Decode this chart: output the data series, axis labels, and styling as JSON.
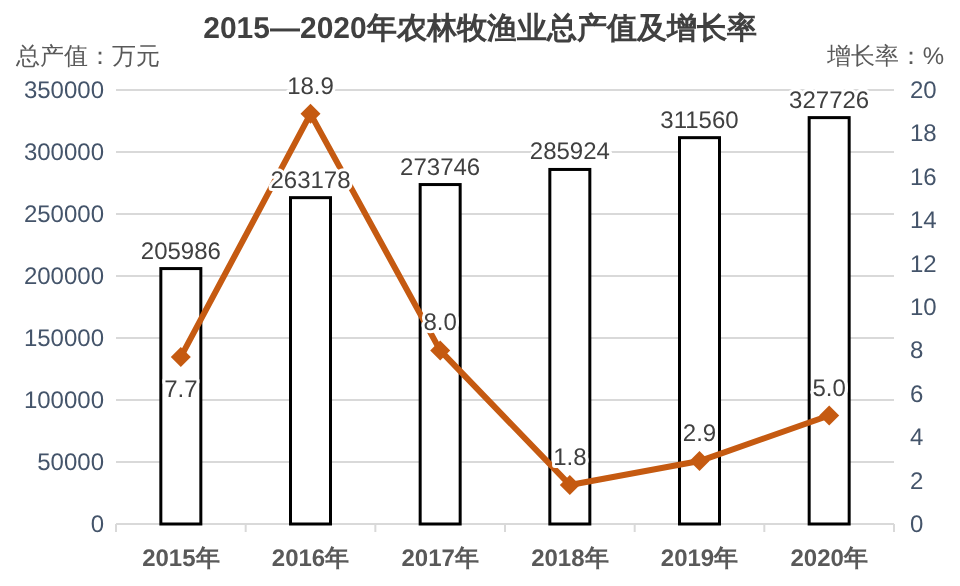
{
  "chart_data": {
    "type": "bar",
    "title": "2015—2020年农林牧渔业总产值及增长率",
    "ylabel": "总产值：万元",
    "y2label": "增长率：%",
    "categories": [
      "2015年",
      "2016年",
      "2017年",
      "2018年",
      "2019年",
      "2020年"
    ],
    "series": [
      {
        "color": "#ffffff",
        "values": [
          205986,
          263178,
          273746,
          285924,
          311560,
          327726
        ]
      },
      {
        "type": "line",
        "axis": "y2",
        "color": "#c55a11",
        "marker": "diamond",
        "values": [
          7.7,
          18.9,
          8.0,
          1.8,
          2.9,
          5.0
        ],
        "value_labels": [
          "7.7",
          "18.9",
          "8.0",
          "1.8",
          "2.9",
          "5.0"
        ]
      }
    ],
    "data_labels": true,
    "ylim": [
      0,
      350000
    ],
    "yticks": [
      0,
      50000,
      100000,
      150000,
      200000,
      250000,
      300000,
      350000
    ],
    "y2lim": [
      0,
      20
    ],
    "y2ticks": [
      0,
      2,
      4,
      6,
      8,
      10,
      12,
      14,
      16,
      18,
      20
    ],
    "grid": "y"
  }
}
